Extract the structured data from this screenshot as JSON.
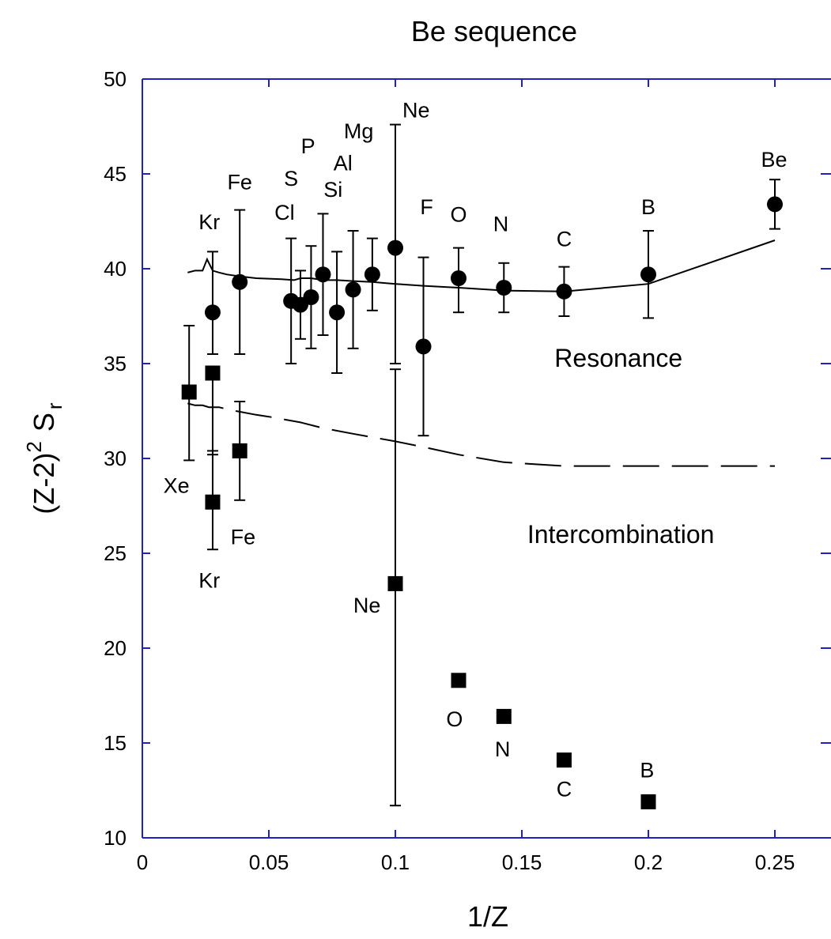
{
  "chart_data": {
    "type": "scatter",
    "title": "Be sequence",
    "xlabel": "1/Z",
    "ylabel": {
      "main": "(Z-2)",
      "sup": "2",
      "sym": "S",
      "sub": "r"
    },
    "xlim": [
      0,
      0.27
    ],
    "ylim": [
      10,
      50
    ],
    "x_ticks": [
      0,
      0.05,
      0.1,
      0.15,
      0.2,
      0.25
    ],
    "x_tick_labels": [
      "0",
      "0.05",
      "0.1",
      "0.15",
      "0.2",
      "0.25"
    ],
    "y_ticks": [
      10,
      15,
      20,
      25,
      30,
      35,
      40,
      45,
      50
    ],
    "y_tick_labels": [
      "10",
      "15",
      "20",
      "25",
      "30",
      "35",
      "40",
      "45",
      "50"
    ],
    "axis_color": "#2020c8",
    "grid": false,
    "series": [
      {
        "marker": "circle",
        "points": [
          {
            "x": 0.0278,
            "y": 37.7,
            "lo": 35.5,
            "hi": 40.9
          },
          {
            "x": 0.0385,
            "y": 39.3,
            "lo": 35.5,
            "hi": 43.1
          },
          {
            "x": 0.0588,
            "y": 38.3,
            "lo": 35.0,
            "hi": 41.6
          },
          {
            "x": 0.0625,
            "y": 38.1,
            "lo": 36.3,
            "hi": 39.9
          },
          {
            "x": 0.0667,
            "y": 38.5,
            "lo": 35.8,
            "hi": 41.2
          },
          {
            "x": 0.0714,
            "y": 39.7,
            "lo": 36.5,
            "hi": 42.9
          },
          {
            "x": 0.0769,
            "y": 37.7,
            "lo": 34.5,
            "hi": 40.9
          },
          {
            "x": 0.0833,
            "y": 38.9,
            "lo": 35.8,
            "hi": 42.0
          },
          {
            "x": 0.0909,
            "y": 39.7,
            "lo": 37.8,
            "hi": 41.6
          },
          {
            "x": 0.1,
            "y": 41.1,
            "lo": 35.0,
            "hi": 47.6
          },
          {
            "x": 0.1111,
            "y": 35.9,
            "lo": 31.2,
            "hi": 40.6
          },
          {
            "x": 0.125,
            "y": 39.5,
            "lo": 37.7,
            "hi": 41.1
          },
          {
            "x": 0.1429,
            "y": 39.0,
            "lo": 37.7,
            "hi": 40.3
          },
          {
            "x": 0.1667,
            "y": 38.8,
            "lo": 37.5,
            "hi": 40.1
          },
          {
            "x": 0.2,
            "y": 39.7,
            "lo": 37.4,
            "hi": 42.0
          },
          {
            "x": 0.25,
            "y": 43.4,
            "lo": 42.1,
            "hi": 44.7
          }
        ]
      },
      {
        "marker": "square",
        "points": [
          {
            "x": 0.0185,
            "y": 33.5,
            "lo": 29.9,
            "hi": 37.0
          },
          {
            "x": 0.0278,
            "y": 34.5,
            "lo": 30.2,
            "hi": 34.8
          },
          {
            "x": 0.0385,
            "y": 30.4,
            "lo": 27.8,
            "hi": 33.0
          },
          {
            "x": 0.0278,
            "y": 27.7,
            "lo": 25.2,
            "hi": 30.4
          },
          {
            "x": 0.1,
            "y": 23.4,
            "lo": 11.7,
            "hi": 34.7
          },
          {
            "x": 0.125,
            "y": 18.3,
            "lo": 18.0,
            "hi": 18.6
          },
          {
            "x": 0.1429,
            "y": 16.4
          },
          {
            "x": 0.1667,
            "y": 14.1
          },
          {
            "x": 0.2,
            "y": 11.9
          }
        ]
      }
    ],
    "lines": [
      {
        "style": "solid",
        "points": [
          [
            0.0179,
            39.8
          ],
          [
            0.0208,
            39.9
          ],
          [
            0.0238,
            39.9
          ],
          [
            0.0256,
            40.5
          ],
          [
            0.0263,
            40.3
          ],
          [
            0.0278,
            39.9
          ],
          [
            0.0303,
            39.8
          ],
          [
            0.0333,
            39.7
          ],
          [
            0.0385,
            39.6
          ],
          [
            0.045,
            39.5
          ],
          [
            0.055,
            39.45
          ],
          [
            0.06,
            39.4
          ],
          [
            0.0625,
            39.5
          ],
          [
            0.0667,
            39.5
          ],
          [
            0.0714,
            39.4
          ],
          [
            0.0769,
            39.4
          ],
          [
            0.0833,
            39.35
          ],
          [
            0.0909,
            39.3
          ],
          [
            0.1,
            39.2
          ],
          [
            0.1111,
            39.1
          ],
          [
            0.125,
            39.0
          ],
          [
            0.1429,
            38.85
          ],
          [
            0.1667,
            38.8
          ],
          [
            0.2,
            39.2
          ],
          [
            0.25,
            41.5
          ]
        ]
      },
      {
        "style": "dashed",
        "points": [
          [
            0.0179,
            32.9
          ],
          [
            0.0208,
            32.8
          ],
          [
            0.0238,
            32.8
          ],
          [
            0.0263,
            32.7
          ],
          [
            0.0303,
            32.7
          ],
          [
            0.0333,
            32.6
          ],
          [
            0.037,
            32.5
          ],
          [
            0.045,
            32.3
          ],
          [
            0.05,
            32.2
          ],
          [
            0.0625,
            31.9
          ],
          [
            0.0714,
            31.6
          ],
          [
            0.0833,
            31.3
          ],
          [
            0.1,
            30.9
          ],
          [
            0.1111,
            30.6
          ],
          [
            0.125,
            30.2
          ],
          [
            0.1429,
            29.8
          ],
          [
            0.1667,
            29.6
          ],
          [
            0.2,
            29.6
          ],
          [
            0.25,
            29.6
          ]
        ]
      }
    ],
    "point_labels": [
      {
        "text": "Kr",
        "x": 0.0265,
        "y": 42.5
      },
      {
        "text": "Fe",
        "x": 0.0385,
        "y": 44.6
      },
      {
        "text": "Cl",
        "x": 0.0562,
        "y": 43.0
      },
      {
        "text": "S",
        "x": 0.0588,
        "y": 44.8
      },
      {
        "text": "P",
        "x": 0.0655,
        "y": 46.5
      },
      {
        "text": "Si",
        "x": 0.0754,
        "y": 44.2
      },
      {
        "text": "Al",
        "x": 0.0793,
        "y": 45.6
      },
      {
        "text": "Mg",
        "x": 0.0855,
        "y": 47.3
      },
      {
        "text": "Ne",
        "x": 0.1082,
        "y": 48.4
      },
      {
        "text": "F",
        "x": 0.1124,
        "y": 43.3
      },
      {
        "text": "O",
        "x": 0.125,
        "y": 42.9
      },
      {
        "text": "N",
        "x": 0.1417,
        "y": 42.4
      },
      {
        "text": "C",
        "x": 0.1667,
        "y": 41.6
      },
      {
        "text": "B",
        "x": 0.2,
        "y": 43.3
      },
      {
        "text": "Be",
        "x": 0.2497,
        "y": 45.8
      },
      {
        "text": "Xe",
        "x": 0.0135,
        "y": 28.6
      },
      {
        "text": "Fe",
        "x": 0.0398,
        "y": 25.9
      },
      {
        "text": "Kr",
        "x": 0.0265,
        "y": 23.6
      },
      {
        "text": "Ne",
        "x": 0.0888,
        "y": 22.3
      },
      {
        "text": "O",
        "x": 0.1234,
        "y": 16.3
      },
      {
        "text": "N",
        "x": 0.1424,
        "y": 14.7
      },
      {
        "text": "C",
        "x": 0.1667,
        "y": 12.6
      },
      {
        "text": "B",
        "x": 0.1995,
        "y": 13.6
      }
    ],
    "region_labels": [
      {
        "text": "Resonance",
        "x": 0.1882,
        "y": 35.3
      },
      {
        "text": "Intercombination",
        "x": 0.1891,
        "y": 26.0
      }
    ]
  }
}
